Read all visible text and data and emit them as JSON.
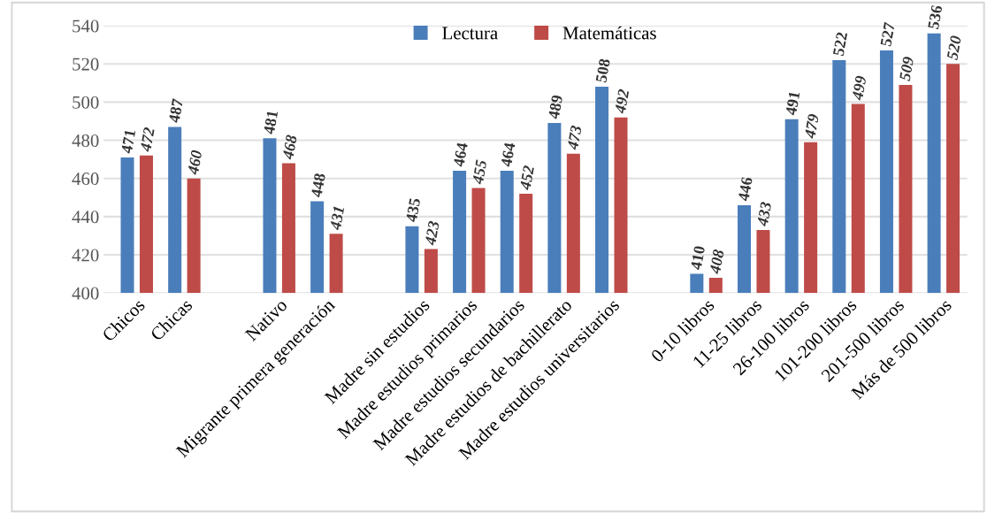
{
  "chart_data": {
    "type": "bar",
    "categories": [
      "Chicos",
      "Chicas",
      null,
      "Nativo",
      "Migrante primera generación",
      null,
      "Madre sin estudios",
      "Madre estudios primarios",
      "Madre estudios secundarios",
      "Madre estudios de bachillerato",
      "Madre estudios universitarios",
      null,
      "0-10 libros",
      "11-25 libros",
      "26-100 libros",
      "101-200 libros",
      "201-500 libros",
      "Más de 500 libros"
    ],
    "series": [
      {
        "name": "Lectura",
        "color": "#4a7ebb",
        "values": [
          471,
          487,
          null,
          481,
          448,
          null,
          435,
          464,
          464,
          489,
          508,
          null,
          410,
          446,
          491,
          522,
          527,
          536
        ]
      },
      {
        "name": "Matemáticas",
        "color": "#be4b48",
        "values": [
          472,
          460,
          null,
          468,
          431,
          null,
          423,
          455,
          452,
          473,
          492,
          null,
          408,
          433,
          479,
          499,
          509,
          520
        ]
      }
    ],
    "ylim": [
      400,
      540
    ],
    "yticks": [
      400,
      420,
      440,
      460,
      480,
      500,
      520,
      540
    ],
    "grid": "y",
    "legend": "top",
    "data_labels": true
  }
}
